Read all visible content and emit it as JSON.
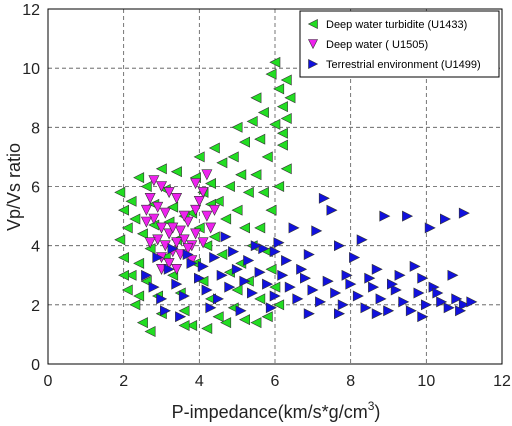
{
  "chart_data": {
    "type": "scatter",
    "xlabel": "P-impedance(km/s*g/cm",
    "xlabel_sup": "3",
    "xlabel_tail": ")",
    "ylabel": "Vp/Vs ratio",
    "xlim": [
      0,
      12
    ],
    "ylim": [
      0,
      12
    ],
    "xticks": [
      "0",
      "2",
      "4",
      "6",
      "8",
      "10",
      "12"
    ],
    "yticks": [
      "0",
      "2",
      "4",
      "6",
      "8",
      "10",
      "12"
    ],
    "grid": true,
    "legend_position": "top-right",
    "series": [
      {
        "name": "Deep water turbidite (U1433)",
        "marker": "triangle-left",
        "color": "#22dd22",
        "points": [
          [
            1.9,
            5.8
          ],
          [
            2.0,
            5.2
          ],
          [
            2.1,
            4.6
          ],
          [
            1.9,
            4.2
          ],
          [
            2.0,
            3.6
          ],
          [
            2.2,
            3.0
          ],
          [
            2.1,
            2.5
          ],
          [
            2.3,
            2.0
          ],
          [
            2.5,
            1.4
          ],
          [
            2.7,
            1.1
          ],
          [
            2.4,
            6.3
          ],
          [
            2.6,
            6.0
          ],
          [
            2.8,
            5.4
          ],
          [
            2.3,
            4.9
          ],
          [
            2.5,
            4.4
          ],
          [
            2.7,
            3.9
          ],
          [
            2.4,
            3.4
          ],
          [
            2.6,
            2.8
          ],
          [
            2.9,
            2.3
          ],
          [
            3.0,
            1.7
          ],
          [
            3.1,
            5.9
          ],
          [
            3.3,
            5.3
          ],
          [
            3.2,
            4.8
          ],
          [
            3.4,
            4.2
          ],
          [
            3.1,
            3.6
          ],
          [
            3.3,
            3.0
          ],
          [
            3.5,
            2.4
          ],
          [
            3.6,
            1.8
          ],
          [
            3.8,
            1.3
          ],
          [
            3.4,
            6.5
          ],
          [
            3.9,
            6.3
          ],
          [
            4.1,
            5.8
          ],
          [
            3.8,
            5.1
          ],
          [
            4.0,
            4.6
          ],
          [
            4.2,
            4.0
          ],
          [
            3.9,
            3.4
          ],
          [
            4.1,
            2.8
          ],
          [
            4.3,
            2.2
          ],
          [
            4.5,
            1.6
          ],
          [
            4.0,
            7.0
          ],
          [
            4.4,
            7.3
          ],
          [
            4.6,
            6.8
          ],
          [
            4.3,
            6.1
          ],
          [
            4.5,
            5.5
          ],
          [
            4.7,
            4.9
          ],
          [
            4.4,
            4.3
          ],
          [
            4.6,
            3.7
          ],
          [
            4.8,
            3.1
          ],
          [
            5.0,
            2.5
          ],
          [
            4.9,
            1.9
          ],
          [
            5.0,
            8.0
          ],
          [
            5.2,
            7.5
          ],
          [
            4.9,
            7.0
          ],
          [
            5.1,
            6.4
          ],
          [
            5.3,
            5.8
          ],
          [
            5.0,
            5.2
          ],
          [
            5.2,
            4.6
          ],
          [
            5.4,
            4.0
          ],
          [
            5.1,
            3.4
          ],
          [
            5.3,
            2.8
          ],
          [
            5.5,
            9.0
          ],
          [
            5.7,
            8.5
          ],
          [
            5.4,
            8.2
          ],
          [
            5.6,
            7.6
          ],
          [
            5.8,
            7.0
          ],
          [
            5.5,
            6.4
          ],
          [
            5.7,
            5.8
          ],
          [
            5.9,
            5.2
          ],
          [
            5.6,
            4.6
          ],
          [
            5.8,
            3.8
          ],
          [
            6.0,
            10.2
          ],
          [
            5.9,
            9.8
          ],
          [
            6.1,
            9.3
          ],
          [
            6.2,
            8.7
          ],
          [
            6.0,
            8.1
          ],
          [
            6.2,
            7.4
          ],
          [
            6.3,
            6.6
          ],
          [
            6.1,
            6.0
          ],
          [
            5.9,
            3.2
          ],
          [
            6.0,
            2.6
          ],
          [
            6.3,
            9.6
          ],
          [
            6.4,
            9.0
          ],
          [
            6.3,
            8.3
          ],
          [
            6.2,
            7.8
          ],
          [
            5.8,
            1.6
          ],
          [
            5.5,
            1.4
          ],
          [
            5.2,
            1.5
          ],
          [
            4.7,
            1.4
          ],
          [
            4.2,
            1.2
          ],
          [
            3.6,
            1.3
          ],
          [
            2.2,
            5.5
          ],
          [
            2.8,
            4.7
          ],
          [
            3.6,
            5.0
          ],
          [
            4.3,
            5.4
          ],
          [
            4.8,
            6.0
          ],
          [
            3.0,
            6.6
          ],
          [
            2.0,
            3.0
          ],
          [
            2.4,
            2.3
          ],
          [
            6.1,
            2.0
          ],
          [
            5.6,
            2.2
          ]
        ]
      },
      {
        "name": "Deep water ( U1505)",
        "marker": "triangle-down",
        "color": "#ee22ee",
        "points": [
          [
            2.8,
            6.2
          ],
          [
            3.0,
            6.0
          ],
          [
            2.7,
            5.6
          ],
          [
            2.9,
            5.3
          ],
          [
            3.1,
            5.1
          ],
          [
            2.8,
            4.9
          ],
          [
            3.0,
            4.6
          ],
          [
            3.2,
            4.4
          ],
          [
            2.9,
            4.2
          ],
          [
            3.1,
            4.0
          ],
          [
            3.3,
            3.8
          ],
          [
            3.0,
            3.6
          ],
          [
            3.2,
            3.4
          ],
          [
            3.4,
            3.2
          ],
          [
            3.5,
            4.5
          ],
          [
            3.6,
            4.2
          ],
          [
            3.8,
            4.0
          ],
          [
            3.7,
            4.8
          ],
          [
            3.9,
            5.2
          ],
          [
            4.1,
            5.8
          ],
          [
            3.9,
            6.1
          ],
          [
            4.2,
            6.4
          ],
          [
            4.0,
            5.5
          ],
          [
            3.4,
            5.6
          ],
          [
            3.6,
            5.0
          ],
          [
            3.3,
            4.6
          ],
          [
            3.5,
            3.7
          ],
          [
            3.8,
            3.5
          ],
          [
            4.3,
            4.6
          ],
          [
            4.4,
            5.2
          ],
          [
            2.6,
            4.8
          ],
          [
            2.7,
            4.1
          ],
          [
            3.0,
            3.2
          ],
          [
            3.9,
            4.4
          ],
          [
            4.1,
            4.1
          ],
          [
            3.7,
            3.9
          ],
          [
            4.2,
            5.0
          ],
          [
            3.2,
            5.8
          ],
          [
            2.6,
            5.2
          ],
          [
            3.4,
            4.1
          ]
        ]
      },
      {
        "name": "Terrestrial environment (U1499)",
        "marker": "triangle-right",
        "color": "#1111dd",
        "points": [
          [
            2.6,
            3.0
          ],
          [
            2.8,
            2.6
          ],
          [
            3.0,
            2.2
          ],
          [
            3.2,
            3.2
          ],
          [
            3.4,
            2.7
          ],
          [
            3.6,
            2.3
          ],
          [
            3.8,
            3.4
          ],
          [
            4.0,
            2.9
          ],
          [
            4.2,
            2.5
          ],
          [
            4.4,
            3.6
          ],
          [
            4.6,
            3.0
          ],
          [
            4.8,
            2.6
          ],
          [
            5.0,
            3.2
          ],
          [
            5.2,
            2.8
          ],
          [
            5.4,
            2.4
          ],
          [
            5.6,
            3.1
          ],
          [
            5.8,
            2.7
          ],
          [
            6.0,
            2.3
          ],
          [
            6.2,
            3.0
          ],
          [
            6.4,
            2.6
          ],
          [
            6.6,
            2.2
          ],
          [
            6.8,
            2.9
          ],
          [
            7.0,
            2.5
          ],
          [
            7.2,
            2.1
          ],
          [
            7.4,
            2.8
          ],
          [
            7.6,
            2.4
          ],
          [
            7.8,
            2.0
          ],
          [
            8.0,
            2.7
          ],
          [
            8.2,
            2.3
          ],
          [
            8.4,
            1.9
          ],
          [
            8.6,
            2.6
          ],
          [
            8.8,
            2.2
          ],
          [
            9.0,
            1.8
          ],
          [
            9.2,
            2.5
          ],
          [
            9.4,
            2.1
          ],
          [
            9.6,
            1.8
          ],
          [
            9.8,
            2.4
          ],
          [
            10.0,
            2.0
          ],
          [
            10.2,
            2.6
          ],
          [
            10.4,
            2.1
          ],
          [
            10.6,
            1.9
          ],
          [
            10.8,
            2.2
          ],
          [
            11.0,
            2.0
          ],
          [
            11.2,
            2.1
          ],
          [
            2.9,
            3.6
          ],
          [
            3.3,
            3.9
          ],
          [
            3.7,
            3.7
          ],
          [
            4.1,
            3.3
          ],
          [
            4.5,
            2.2
          ],
          [
            4.9,
            3.8
          ],
          [
            5.3,
            3.5
          ],
          [
            5.7,
            3.9
          ],
          [
            6.1,
            4.1
          ],
          [
            6.5,
            4.6
          ],
          [
            6.9,
            3.7
          ],
          [
            7.3,
            5.6
          ],
          [
            7.5,
            5.2
          ],
          [
            7.1,
            4.5
          ],
          [
            7.7,
            4.0
          ],
          [
            8.1,
            3.6
          ],
          [
            8.3,
            4.2
          ],
          [
            8.7,
            3.2
          ],
          [
            8.9,
            5.0
          ],
          [
            9.3,
            3.0
          ],
          [
            9.7,
            3.3
          ],
          [
            10.1,
            4.6
          ],
          [
            10.5,
            4.9
          ],
          [
            10.7,
            3.0
          ],
          [
            11.0,
            5.1
          ],
          [
            9.5,
            5.0
          ],
          [
            6.3,
            3.5
          ],
          [
            6.7,
            3.2
          ],
          [
            7.9,
            3.0
          ],
          [
            8.5,
            2.9
          ],
          [
            9.1,
            2.7
          ],
          [
            9.9,
            2.9
          ],
          [
            10.3,
            2.4
          ],
          [
            3.1,
            1.8
          ],
          [
            3.5,
            1.6
          ],
          [
            4.3,
            1.9
          ],
          [
            5.1,
            1.8
          ],
          [
            5.9,
            1.9
          ],
          [
            6.9,
            1.7
          ],
          [
            7.7,
            1.7
          ],
          [
            8.7,
            1.7
          ],
          [
            9.9,
            1.6
          ],
          [
            10.9,
            1.8
          ],
          [
            4.7,
            4.3
          ],
          [
            5.5,
            4.0
          ],
          [
            6.0,
            3.8
          ]
        ]
      }
    ]
  }
}
